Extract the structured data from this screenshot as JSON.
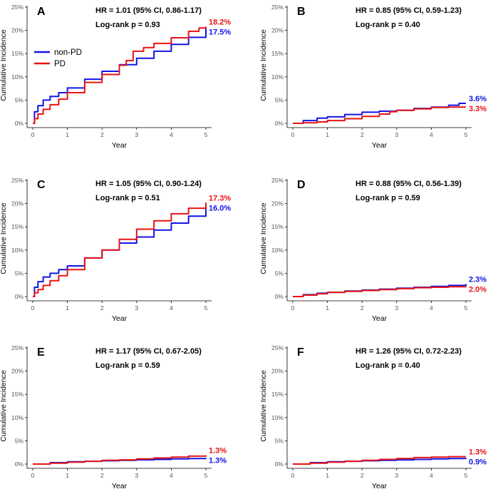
{
  "colors": {
    "non_pd": "#1414e6",
    "pd": "#e61414"
  },
  "legend": {
    "items": [
      {
        "label": "non-PD",
        "color": "#1414e6"
      },
      {
        "label": "PD",
        "color": "#e61414"
      }
    ]
  },
  "chart_data": [
    {
      "type": "line",
      "panel": "A",
      "hr_text": "HR = 1.01 (95% CI, 0.86-1.17)",
      "logrank_text": "Log-rank p = 0.93",
      "xlabel": "Year",
      "ylabel": "Cumulative Incidence",
      "xticks": [
        "0",
        "1",
        "2",
        "3",
        "4",
        "5"
      ],
      "yticks": [
        "0%",
        "5%",
        "10%",
        "15%",
        "20%",
        "25%"
      ],
      "xlim": [
        0,
        5
      ],
      "ylim": [
        0,
        25
      ],
      "series": [
        {
          "name": "non-PD",
          "x": [
            0,
            0.05,
            0.15,
            0.3,
            0.5,
            0.75,
            1,
            1.5,
            2,
            2.5,
            3,
            3.5,
            4,
            4.5,
            5
          ],
          "y": [
            0,
            2.5,
            3.8,
            5.0,
            5.8,
            6.6,
            7.6,
            9.5,
            11.2,
            12.6,
            14.0,
            15.5,
            17.0,
            18.5,
            20.5
          ]
        },
        {
          "name": "PD",
          "x": [
            0,
            0.05,
            0.15,
            0.3,
            0.5,
            0.75,
            1,
            1.5,
            2,
            2.5,
            2.7,
            2.9,
            3.2,
            3.5,
            4,
            4.5,
            4.8,
            5
          ],
          "y": [
            0,
            1.0,
            2.0,
            3.0,
            4.0,
            5.2,
            6.6,
            8.8,
            10.5,
            12.5,
            13.5,
            15.5,
            16.3,
            17.2,
            18.4,
            19.8,
            20.5,
            20.8
          ]
        }
      ],
      "end_labels": [
        {
          "series": "PD",
          "text": "18.2%"
        },
        {
          "series": "non-PD",
          "text": "17.5%"
        }
      ]
    },
    {
      "type": "line",
      "panel": "B",
      "hr_text": "HR = 0.85 (95% CI, 0.59-1.23)",
      "logrank_text": "Log-rank p = 0.40",
      "xlabel": "Year",
      "ylabel": "Cumulative Incidence",
      "xticks": [
        "0",
        "1",
        "2",
        "3",
        "4",
        "5"
      ],
      "yticks": [
        "0%",
        "5%",
        "10%",
        "15%",
        "20%",
        "25%"
      ],
      "xlim": [
        0,
        5
      ],
      "ylim": [
        0,
        25
      ],
      "series": [
        {
          "name": "non-PD",
          "x": [
            0,
            0.3,
            0.7,
            1,
            1.5,
            2,
            2.5,
            3,
            3.5,
            4,
            4.5,
            4.8,
            5
          ],
          "y": [
            0,
            0.6,
            1.1,
            1.4,
            1.9,
            2.4,
            2.6,
            2.8,
            3.2,
            3.5,
            3.9,
            4.3,
            4.3
          ]
        },
        {
          "name": "PD",
          "x": [
            0,
            0.3,
            0.7,
            1,
            1.5,
            2,
            2.5,
            2.8,
            3,
            3.5,
            4,
            4.5,
            5
          ],
          "y": [
            0,
            0.1,
            0.3,
            0.6,
            1.0,
            1.5,
            2.0,
            2.5,
            2.8,
            3.1,
            3.4,
            3.5,
            3.5
          ]
        }
      ],
      "end_labels": [
        {
          "series": "non-PD",
          "text": "3.6%"
        },
        {
          "series": "PD",
          "text": "3.3%"
        }
      ]
    },
    {
      "type": "line",
      "panel": "C",
      "hr_text": "HR = 1.05 (95% CI, 0.90-1.24)",
      "logrank_text": "Log-rank p = 0.51",
      "xlabel": "Year",
      "ylabel": "Cumulative Incidence",
      "xticks": [
        "0",
        "1",
        "2",
        "3",
        "4",
        "5"
      ],
      "yticks": [
        "0%",
        "5%",
        "10%",
        "15%",
        "20%",
        "25%"
      ],
      "xlim": [
        0,
        5
      ],
      "ylim": [
        0,
        25
      ],
      "series": [
        {
          "name": "non-PD",
          "x": [
            0,
            0.05,
            0.15,
            0.3,
            0.5,
            0.75,
            1,
            1.5,
            2,
            2.5,
            3,
            3.5,
            4,
            4.5,
            5
          ],
          "y": [
            0,
            2.0,
            3.2,
            4.2,
            5.0,
            5.8,
            6.6,
            8.3,
            10.0,
            11.5,
            12.8,
            14.3,
            15.8,
            17.3,
            19.3
          ]
        },
        {
          "name": "PD",
          "x": [
            0,
            0.05,
            0.15,
            0.3,
            0.5,
            0.75,
            1,
            1.5,
            2,
            2.5,
            3,
            3.5,
            4,
            4.5,
            5
          ],
          "y": [
            0,
            0.8,
            1.5,
            2.4,
            3.4,
            4.5,
            5.8,
            8.3,
            10.0,
            12.3,
            14.5,
            16.3,
            17.8,
            19.0,
            20.2
          ]
        }
      ],
      "end_labels": [
        {
          "series": "PD",
          "text": "17.3%"
        },
        {
          "series": "non-PD",
          "text": "16.0%"
        }
      ]
    },
    {
      "type": "line",
      "panel": "D",
      "hr_text": "HR = 0.88 (95% CI, 0.56-1.39)",
      "logrank_text": "Log-rank p = 0.59",
      "xlabel": "Year",
      "ylabel": "Cumulative Incidence",
      "xticks": [
        "0",
        "1",
        "2",
        "3",
        "4",
        "5"
      ],
      "yticks": [
        "0%",
        "5%",
        "10%",
        "15%",
        "20%",
        "25%"
      ],
      "xlim": [
        0,
        5
      ],
      "ylim": [
        0,
        25
      ],
      "series": [
        {
          "name": "non-PD",
          "x": [
            0,
            0.3,
            0.7,
            1,
            1.5,
            2,
            2.5,
            3,
            3.5,
            4,
            4.5,
            5
          ],
          "y": [
            0,
            0.4,
            0.7,
            0.9,
            1.2,
            1.4,
            1.6,
            1.8,
            2.0,
            2.2,
            2.4,
            2.7
          ]
        },
        {
          "name": "PD",
          "x": [
            0,
            0.3,
            0.7,
            1,
            1.5,
            2,
            2.5,
            3,
            3.5,
            4,
            4.5,
            5
          ],
          "y": [
            0,
            0.3,
            0.6,
            0.9,
            1.1,
            1.3,
            1.5,
            1.7,
            1.9,
            2.0,
            2.1,
            2.2
          ]
        }
      ],
      "end_labels": [
        {
          "series": "non-PD",
          "text": "2.3%"
        },
        {
          "series": "PD",
          "text": "2.0%"
        }
      ]
    },
    {
      "type": "line",
      "panel": "E",
      "hr_text": "HR = 1.17 (95% CI, 0.67-2.05)",
      "logrank_text": "Log-rank p = 0.59",
      "xlabel": "Year",
      "ylabel": "Cumulative Incidence",
      "xticks": [
        "0",
        "1",
        "2",
        "3",
        "4",
        "5"
      ],
      "yticks": [
        "0%",
        "5%",
        "10%",
        "15%",
        "20%",
        "25%"
      ],
      "xlim": [
        0,
        5
      ],
      "ylim": [
        0,
        25
      ],
      "series": [
        {
          "name": "non-PD",
          "x": [
            0,
            0.5,
            1,
            1.5,
            2,
            2.5,
            3,
            3.5,
            4,
            4.5,
            5
          ],
          "y": [
            0,
            0.3,
            0.5,
            0.6,
            0.7,
            0.8,
            0.9,
            1.0,
            1.1,
            1.2,
            1.3
          ]
        },
        {
          "name": "PD",
          "x": [
            0,
            0.5,
            1,
            1.5,
            2,
            2.5,
            3,
            3.5,
            4,
            4.5,
            5
          ],
          "y": [
            0,
            0.2,
            0.4,
            0.6,
            0.8,
            0.9,
            1.1,
            1.3,
            1.5,
            1.7,
            1.9
          ]
        }
      ],
      "end_labels": [
        {
          "series": "PD",
          "text": "1.3%"
        },
        {
          "series": "non-PD",
          "text": "1.3%"
        }
      ]
    },
    {
      "type": "line",
      "panel": "F",
      "hr_text": "HR = 1.26 (95% CI, 0.72-2.23)",
      "logrank_text": "Log-rank p = 0.40",
      "xlabel": "Year",
      "ylabel": "Cumulative Incidence",
      "xticks": [
        "0",
        "1",
        "2",
        "3",
        "4",
        "5"
      ],
      "yticks": [
        "0%",
        "5%",
        "10%",
        "15%",
        "20%",
        "25%"
      ],
      "xlim": [
        0,
        5
      ],
      "ylim": [
        0,
        25
      ],
      "series": [
        {
          "name": "non-PD",
          "x": [
            0,
            0.5,
            1,
            1.5,
            2,
            2.5,
            3,
            3.5,
            4,
            4.5,
            5
          ],
          "y": [
            0,
            0.3,
            0.5,
            0.6,
            0.7,
            0.8,
            0.9,
            1.0,
            1.1,
            1.2,
            1.3
          ]
        },
        {
          "name": "PD",
          "x": [
            0,
            0.5,
            1,
            1.5,
            2,
            2.5,
            3,
            3.5,
            4,
            4.5,
            5
          ],
          "y": [
            0,
            0.2,
            0.4,
            0.6,
            0.8,
            1.0,
            1.2,
            1.4,
            1.5,
            1.6,
            1.6
          ]
        }
      ],
      "end_labels": [
        {
          "series": "PD",
          "text": "1.3%"
        },
        {
          "series": "non-PD",
          "text": "0.9%"
        }
      ]
    }
  ]
}
